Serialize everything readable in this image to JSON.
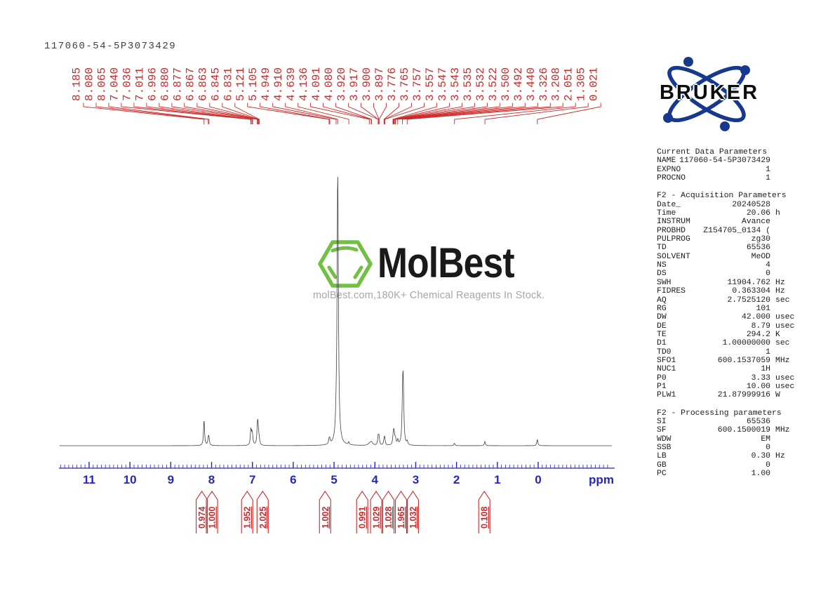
{
  "page": {
    "title": "117060-54-5P3073429"
  },
  "watermark": {
    "name": "MolBest",
    "tagline": "molBest.com,180K+ Chemical Reagents In Stock.",
    "green": "#72c043"
  },
  "bruker": {
    "label": "BRUKER",
    "blue": "#16388f"
  },
  "colors": {
    "red": "#cc2a2a",
    "blue": "#2626bf",
    "trace": "#404040"
  },
  "chart_data": {
    "type": "line",
    "title": "117060-54-5P3073429",
    "xlabel": "ppm",
    "x_axis_ticks": [
      11,
      10,
      9,
      8,
      7,
      6,
      5,
      4,
      3,
      2,
      1,
      0
    ],
    "x_range_displayed": [
      11.7,
      -1.8
    ],
    "peak_labels": [
      "8.185",
      "8.080",
      "8.065",
      "7.040",
      "7.036",
      "7.011",
      "6.996",
      "6.880",
      "6.877",
      "6.867",
      "6.863",
      "6.845",
      "6.831",
      "5.121",
      "5.105",
      "4.949",
      "4.910",
      "4.639",
      "4.136",
      "4.091",
      "4.080",
      "3.920",
      "3.917",
      "3.900",
      "3.897",
      "3.776",
      "3.765",
      "3.757",
      "3.557",
      "3.547",
      "3.543",
      "3.535",
      "3.532",
      "3.522",
      "3.500",
      "3.492",
      "3.440",
      "3.326",
      "3.208",
      "2.051",
      "1.305",
      "0.021"
    ],
    "integrals": [
      {
        "ppm": 8.24,
        "value": "0.974"
      },
      {
        "ppm": 7.99,
        "value": "1.000"
      },
      {
        "ppm": 7.13,
        "value": "1.952"
      },
      {
        "ppm": 6.75,
        "value": "2.025"
      },
      {
        "ppm": 5.22,
        "value": "1.002"
      },
      {
        "ppm": 4.31,
        "value": "0.991"
      },
      {
        "ppm": 3.97,
        "value": "1.029"
      },
      {
        "ppm": 3.67,
        "value": "1.028"
      },
      {
        "ppm": 3.36,
        "value": "1.965"
      },
      {
        "ppm": 3.07,
        "value": "1.032"
      },
      {
        "ppm": 1.32,
        "value": "0.108"
      }
    ],
    "drawn_peaks": [
      [
        8.185,
        37
      ],
      [
        8.08,
        9
      ],
      [
        8.065,
        9
      ],
      [
        7.04,
        11
      ],
      [
        7.036,
        11
      ],
      [
        7.011,
        13
      ],
      [
        6.996,
        8
      ],
      [
        6.88,
        10
      ],
      [
        6.877,
        10
      ],
      [
        6.867,
        12
      ],
      [
        6.863,
        11
      ],
      [
        6.845,
        7
      ],
      [
        6.831,
        4
      ],
      [
        5.121,
        6
      ],
      [
        5.105,
        6
      ],
      [
        4.949,
        14
      ],
      [
        4.91,
        392,
        1.1
      ],
      [
        4.639,
        4
      ],
      [
        4.136,
        2.5,
        2
      ],
      [
        4.091,
        2.5,
        2
      ],
      [
        4.08,
        2.5,
        2
      ],
      [
        3.92,
        6
      ],
      [
        3.917,
        6
      ],
      [
        3.9,
        6
      ],
      [
        3.897,
        5
      ],
      [
        3.776,
        5
      ],
      [
        3.765,
        6
      ],
      [
        3.757,
        5
      ],
      [
        3.557,
        4
      ],
      [
        3.547,
        5
      ],
      [
        3.543,
        5
      ],
      [
        3.535,
        6
      ],
      [
        3.532,
        6
      ],
      [
        3.522,
        5
      ],
      [
        3.5,
        5
      ],
      [
        3.492,
        4
      ],
      [
        3.44,
        7
      ],
      [
        3.326,
        22
      ],
      [
        3.312,
        80,
        1.0
      ],
      [
        3.299,
        30
      ],
      [
        3.208,
        5
      ],
      [
        2.051,
        3.5
      ],
      [
        1.305,
        6
      ],
      [
        0.021,
        9
      ]
    ]
  },
  "parameters": {
    "sections": [
      {
        "heading": "Current Data Parameters",
        "rows": [
          [
            "NAME",
            "117060-54-5P3073429",
            ""
          ],
          [
            "EXPNO",
            "1",
            ""
          ],
          [
            "PROCNO",
            "1",
            ""
          ]
        ]
      },
      {
        "heading": "F2 - Acquisition Parameters",
        "rows": [
          [
            "Date_",
            "20240528",
            ""
          ],
          [
            "Time",
            "20.06",
            "h"
          ],
          [
            "INSTRUM",
            "Avance",
            ""
          ],
          [
            "PROBHD",
            "Z154705_0134 (",
            ""
          ],
          [
            "PULPROG",
            "zg30",
            ""
          ],
          [
            "TD",
            "65536",
            ""
          ],
          [
            "SOLVENT",
            "MeOD",
            ""
          ],
          [
            "NS",
            "4",
            ""
          ],
          [
            "DS",
            "0",
            ""
          ],
          [
            "SWH",
            "11904.762",
            "Hz"
          ],
          [
            "FIDRES",
            "0.363304",
            "Hz"
          ],
          [
            "AQ",
            "2.7525120",
            "sec"
          ],
          [
            "RG",
            "101",
            ""
          ],
          [
            "DW",
            "42.000",
            "usec"
          ],
          [
            "DE",
            "8.79",
            "usec"
          ],
          [
            "TE",
            "294.2",
            "K"
          ],
          [
            "D1",
            "1.00000000",
            "sec"
          ],
          [
            "TD0",
            "1",
            ""
          ],
          [
            "SFO1",
            "600.1537059",
            "MHz"
          ],
          [
            "NUC1",
            "1H",
            ""
          ],
          [
            "P0",
            "3.33",
            "usec"
          ],
          [
            "P1",
            "10.00",
            "usec"
          ],
          [
            "PLW1",
            "21.87999916",
            "W"
          ]
        ]
      },
      {
        "heading": "F2 - Processing parameters",
        "rows": [
          [
            "SI",
            "65536",
            ""
          ],
          [
            "SF",
            "600.1500019",
            "MHz"
          ],
          [
            "WDW",
            "EM",
            ""
          ],
          [
            "SSB",
            "0",
            ""
          ],
          [
            "LB",
            "0.30",
            "Hz"
          ],
          [
            "GB",
            "0",
            ""
          ],
          [
            "PC",
            "1.00",
            ""
          ]
        ]
      }
    ]
  }
}
